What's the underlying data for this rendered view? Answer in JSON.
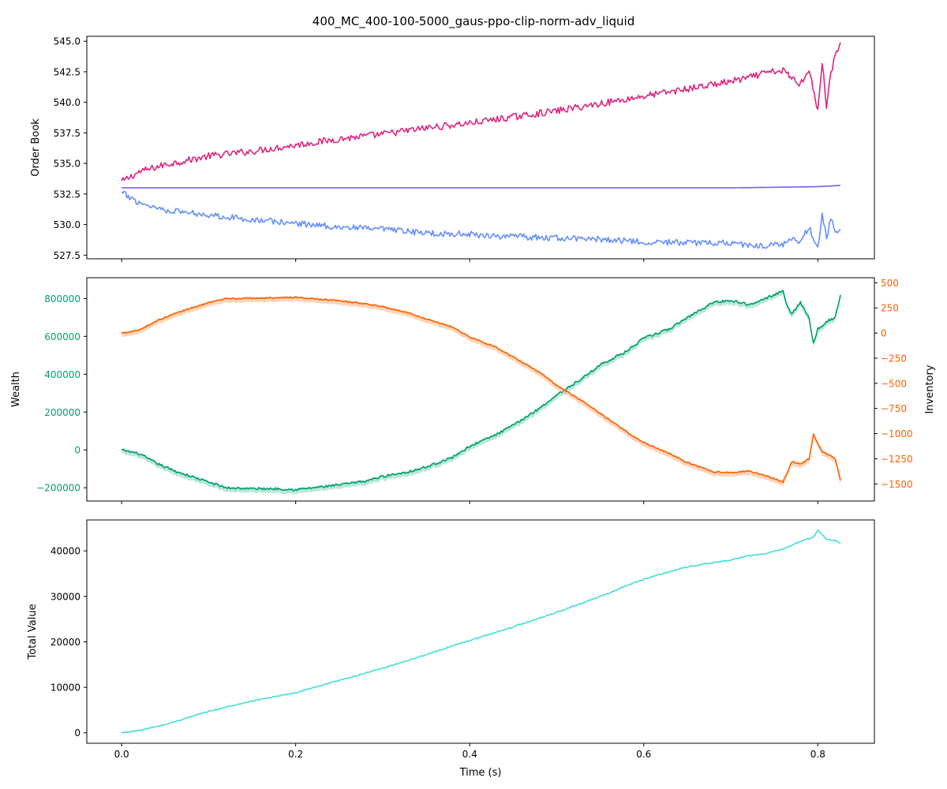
{
  "figure": {
    "title": "400_MC_400-100-5000_gaus-ppo-clip-norm-adv_liquid",
    "xlabel": "Time (s)"
  },
  "chart_data": [
    {
      "type": "line",
      "ylabel": "Order Book",
      "xlim": [
        -0.04,
        0.865
      ],
      "ylim": [
        527.2,
        545.4
      ],
      "xticks": [
        0.0,
        0.2,
        0.4,
        0.6,
        0.8
      ],
      "xtick_labels_shown": false,
      "yticks": [
        527.5,
        530.0,
        532.5,
        535.0,
        537.5,
        540.0,
        542.5,
        545.0
      ],
      "ytick_labels": [
        "527.5",
        "530.0",
        "532.5",
        "535.0",
        "537.5",
        "540.0",
        "542.5",
        "545.0"
      ],
      "series": [
        {
          "color": "#dc267f",
          "x": [
            0.0,
            0.02,
            0.05,
            0.1,
            0.15,
            0.2,
            0.25,
            0.3,
            0.35,
            0.4,
            0.45,
            0.5,
            0.55,
            0.6,
            0.65,
            0.7,
            0.72,
            0.74,
            0.76,
            0.77,
            0.78,
            0.79,
            0.8,
            0.805,
            0.81,
            0.815,
            0.82,
            0.826
          ],
          "y": [
            533.5,
            534.3,
            534.9,
            535.6,
            536.0,
            536.5,
            537.0,
            537.4,
            537.9,
            538.3,
            538.8,
            539.3,
            539.9,
            540.5,
            541.1,
            541.7,
            542.0,
            542.4,
            542.6,
            542.0,
            541.5,
            542.8,
            539.2,
            543.4,
            539.6,
            542.5,
            543.7,
            544.8
          ],
          "noise": 0.28
        },
        {
          "color": "#785ef0",
          "x": [
            0.0,
            0.4,
            0.7,
            0.8,
            0.826
          ],
          "y": [
            533.0,
            533.0,
            533.0,
            533.1,
            533.2
          ],
          "noise": 0.0
        },
        {
          "color": "#648fff",
          "x": [
            0.0,
            0.02,
            0.05,
            0.1,
            0.15,
            0.2,
            0.25,
            0.3,
            0.35,
            0.4,
            0.45,
            0.5,
            0.55,
            0.6,
            0.65,
            0.7,
            0.72,
            0.74,
            0.76,
            0.77,
            0.78,
            0.79,
            0.8,
            0.805,
            0.81,
            0.815,
            0.82,
            0.826
          ],
          "y": [
            532.6,
            531.8,
            531.2,
            530.8,
            530.4,
            530.1,
            529.8,
            529.6,
            529.3,
            529.2,
            529.0,
            528.9,
            528.8,
            528.6,
            528.5,
            528.5,
            528.3,
            528.3,
            528.4,
            528.8,
            528.6,
            529.8,
            528.0,
            530.8,
            529.0,
            530.4,
            529.5,
            529.5
          ],
          "noise": 0.25
        }
      ]
    },
    {
      "type": "line",
      "ylabel": "Wealth",
      "ylabel_right": "Inventory",
      "xlim": [
        -0.04,
        0.865
      ],
      "ylim": [
        -270000,
        910000
      ],
      "ylim_right": [
        -1670,
        550
      ],
      "xticks": [
        0.0,
        0.2,
        0.4,
        0.6,
        0.8
      ],
      "xtick_labels_shown": false,
      "yticks": [
        -200000,
        0,
        200000,
        400000,
        600000,
        800000
      ],
      "ytick_labels": [
        "−200000",
        "0",
        "200000",
        "400000",
        "600000",
        "800000"
      ],
      "yticks_right": [
        -1500,
        -1250,
        -1000,
        -750,
        -500,
        -250,
        0,
        250,
        500
      ],
      "ytick_labels_right": [
        "−1500",
        "−1250",
        "−1000",
        "−750",
        "−500",
        "−250",
        "0",
        "250",
        "500"
      ],
      "left_color": "#009e73",
      "right_color": "#fe6100",
      "series": [
        {
          "axis": "left",
          "color": "#009e73",
          "band_color": "#7fd4b7",
          "x": [
            0.0,
            0.02,
            0.04,
            0.06,
            0.08,
            0.1,
            0.12,
            0.15,
            0.18,
            0.2,
            0.22,
            0.25,
            0.28,
            0.3,
            0.33,
            0.35,
            0.38,
            0.4,
            0.43,
            0.45,
            0.48,
            0.5,
            0.53,
            0.55,
            0.58,
            0.6,
            0.63,
            0.65,
            0.68,
            0.7,
            0.72,
            0.74,
            0.76,
            0.765,
            0.77,
            0.78,
            0.79,
            0.795,
            0.8,
            0.805,
            0.81,
            0.82,
            0.826
          ],
          "y": [
            0,
            -20000,
            -70000,
            -110000,
            -140000,
            -170000,
            -200000,
            -205000,
            -205000,
            -210000,
            -200000,
            -185000,
            -165000,
            -140000,
            -115000,
            -90000,
            -40000,
            20000,
            80000,
            130000,
            220000,
            290000,
            380000,
            450000,
            520000,
            590000,
            640000,
            700000,
            780000,
            790000,
            770000,
            800000,
            840000,
            760000,
            720000,
            780000,
            700000,
            560000,
            640000,
            650000,
            680000,
            700000,
            820000
          ],
          "noise": 6000
        },
        {
          "axis": "right",
          "color": "#fe6100",
          "band_color": "#ffb27f",
          "x": [
            0.0,
            0.02,
            0.04,
            0.06,
            0.08,
            0.1,
            0.12,
            0.15,
            0.18,
            0.2,
            0.22,
            0.25,
            0.28,
            0.3,
            0.33,
            0.35,
            0.38,
            0.4,
            0.43,
            0.45,
            0.48,
            0.5,
            0.53,
            0.55,
            0.58,
            0.6,
            0.63,
            0.65,
            0.68,
            0.7,
            0.72,
            0.74,
            0.76,
            0.765,
            0.77,
            0.78,
            0.79,
            0.795,
            0.8,
            0.805,
            0.81,
            0.82,
            0.826
          ],
          "y": [
            0,
            30,
            120,
            190,
            250,
            300,
            340,
            345,
            350,
            355,
            340,
            320,
            290,
            260,
            200,
            140,
            60,
            -40,
            -140,
            -240,
            -390,
            -520,
            -680,
            -800,
            -980,
            -1090,
            -1200,
            -1290,
            -1380,
            -1390,
            -1370,
            -1420,
            -1480,
            -1380,
            -1280,
            -1300,
            -1250,
            -1000,
            -1100,
            -1180,
            -1200,
            -1250,
            -1470
          ],
          "noise": 6
        }
      ]
    },
    {
      "type": "line",
      "ylabel": "Total Value",
      "xlim": [
        -0.04,
        0.865
      ],
      "ylim": [
        -2300,
        46800
      ],
      "xticks": [
        0.0,
        0.2,
        0.4,
        0.6,
        0.8
      ],
      "xtick_labels": [
        "0.0",
        "0.2",
        "0.4",
        "0.6",
        "0.8"
      ],
      "xtick_labels_shown": true,
      "yticks": [
        0,
        10000,
        20000,
        30000,
        40000
      ],
      "ytick_labels": [
        "0",
        "10000",
        "20000",
        "30000",
        "40000"
      ],
      "series": [
        {
          "color": "#40e0d0",
          "x": [
            0.0,
            0.02,
            0.05,
            0.1,
            0.15,
            0.2,
            0.25,
            0.3,
            0.35,
            0.4,
            0.45,
            0.5,
            0.55,
            0.6,
            0.65,
            0.7,
            0.72,
            0.74,
            0.76,
            0.78,
            0.79,
            0.795,
            0.8,
            0.81,
            0.82,
            0.826
          ],
          "y": [
            0,
            500,
            1800,
            4700,
            7000,
            8800,
            11500,
            14200,
            17200,
            20300,
            23300,
            26500,
            30000,
            33800,
            36500,
            38000,
            38900,
            39400,
            40400,
            42100,
            42700,
            43000,
            44600,
            42500,
            42300,
            41600
          ],
          "noise": 120
        }
      ]
    }
  ]
}
